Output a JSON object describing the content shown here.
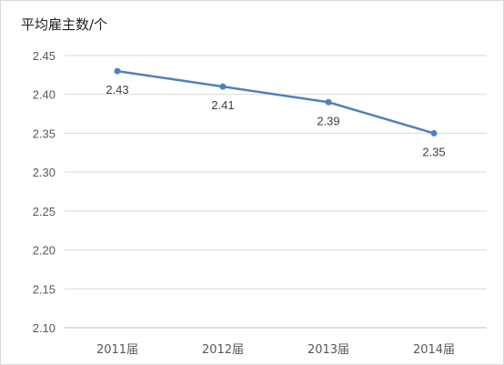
{
  "chart_data": {
    "type": "line",
    "title": "平均雇主数/个",
    "xlabel": "",
    "ylabel": "",
    "categories": [
      "2011届",
      "2012届",
      "2013届",
      "2014届"
    ],
    "series": [
      {
        "values": [
          2.43,
          2.41,
          2.39,
          2.35
        ],
        "color": "#4f81bd"
      }
    ],
    "data_labels": [
      "2.43",
      "2.41",
      "2.39",
      "2.35"
    ],
    "yticks": [
      "2.10",
      "2.15",
      "2.20",
      "2.25",
      "2.30",
      "2.35",
      "2.40",
      "2.45"
    ],
    "ylim": [
      2.1,
      2.45
    ],
    "grid": true,
    "legend": "none"
  }
}
